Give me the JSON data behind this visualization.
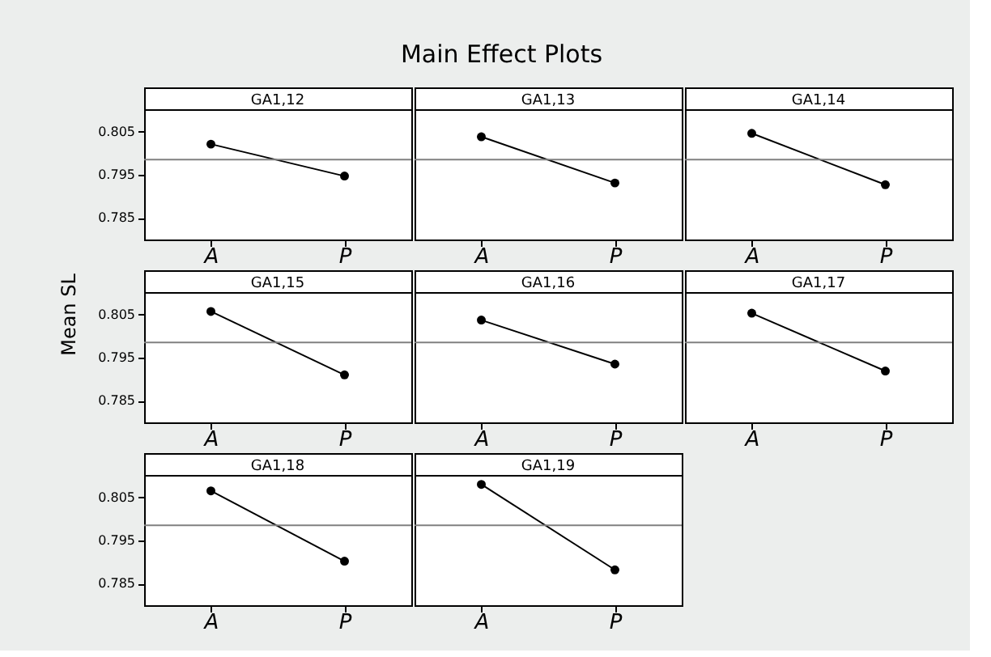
{
  "chart_data": [
    {
      "type": "line",
      "title": "GA1,12",
      "annotations": [
        "Main Effect Plots"
      ],
      "categories": [
        "A",
        "P"
      ],
      "values": [
        0.8021,
        0.7947
      ],
      "color": "#000000",
      "ylim": [
        0.78,
        0.81
      ],
      "yticks": [
        0.785,
        0.795,
        0.805
      ],
      "ref_lines": [
        {
          "axis": "y",
          "value": 0.7985,
          "color": "#808080"
        }
      ],
      "marker": "circle",
      "line_style": "solid"
    },
    {
      "type": "line",
      "title": "GA1,13",
      "categories": [
        "A",
        "P"
      ],
      "values": [
        0.8038,
        0.7931
      ],
      "color": "#000000",
      "ylim": [
        0.78,
        0.81
      ],
      "yticks": [
        0.785,
        0.795,
        0.805
      ],
      "ref_lines": [
        {
          "axis": "y",
          "value": 0.7985,
          "color": "#808080"
        }
      ],
      "marker": "circle",
      "line_style": "solid",
      "tick_labels": "x"
    },
    {
      "type": "line",
      "title": "GA1,14",
      "categories": [
        "A",
        "P"
      ],
      "values": [
        0.8046,
        0.7927
      ],
      "color": "#000000",
      "ylim": [
        0.78,
        0.81
      ],
      "yticks": [
        0.785,
        0.795,
        0.805
      ],
      "ref_lines": [
        {
          "axis": "y",
          "value": 0.7985,
          "color": "#808080"
        }
      ],
      "marker": "circle",
      "line_style": "solid",
      "tick_labels": "x"
    },
    {
      "type": "line",
      "title": "GA1,15",
      "ylabel": "Mean SL",
      "categories": [
        "A",
        "P"
      ],
      "values": [
        0.8057,
        0.791
      ],
      "color": "#000000",
      "ylim": [
        0.78,
        0.81
      ],
      "yticks": [
        0.785,
        0.795,
        0.805
      ],
      "ref_lines": [
        {
          "axis": "y",
          "value": 0.7985,
          "color": "#808080"
        }
      ],
      "marker": "circle",
      "line_style": "solid"
    },
    {
      "type": "line",
      "title": "GA1,16",
      "categories": [
        "A",
        "P"
      ],
      "values": [
        0.8037,
        0.7935
      ],
      "color": "#000000",
      "ylim": [
        0.78,
        0.81
      ],
      "yticks": [
        0.785,
        0.795,
        0.805
      ],
      "ref_lines": [
        {
          "axis": "y",
          "value": 0.7985,
          "color": "#808080"
        }
      ],
      "marker": "circle",
      "line_style": "solid",
      "tick_labels": "x"
    },
    {
      "type": "line",
      "title": "GA1,17",
      "categories": [
        "A",
        "P"
      ],
      "values": [
        0.8053,
        0.7919
      ],
      "color": "#000000",
      "ylim": [
        0.78,
        0.81
      ],
      "yticks": [
        0.785,
        0.795,
        0.805
      ],
      "ref_lines": [
        {
          "axis": "y",
          "value": 0.7985,
          "color": "#808080"
        }
      ],
      "marker": "circle",
      "line_style": "solid",
      "tick_labels": "x"
    },
    {
      "type": "line",
      "title": "GA1,18",
      "categories": [
        "A",
        "P"
      ],
      "values": [
        0.8065,
        0.7902
      ],
      "color": "#000000",
      "ylim": [
        0.78,
        0.81
      ],
      "yticks": [
        0.785,
        0.795,
        0.805
      ],
      "ref_lines": [
        {
          "axis": "y",
          "value": 0.7985,
          "color": "#808080"
        }
      ],
      "marker": "circle",
      "line_style": "solid"
    },
    {
      "type": "line",
      "title": "GA1,19",
      "categories": [
        "A",
        "P"
      ],
      "values": [
        0.808,
        0.7882
      ],
      "color": "#000000",
      "ylim": [
        0.78,
        0.81
      ],
      "yticks": [
        0.785,
        0.795,
        0.805
      ],
      "ref_lines": [
        {
          "axis": "y",
          "value": 0.7985,
          "color": "#808080"
        }
      ],
      "marker": "circle",
      "line_style": "solid",
      "tick_labels": "x"
    }
  ]
}
